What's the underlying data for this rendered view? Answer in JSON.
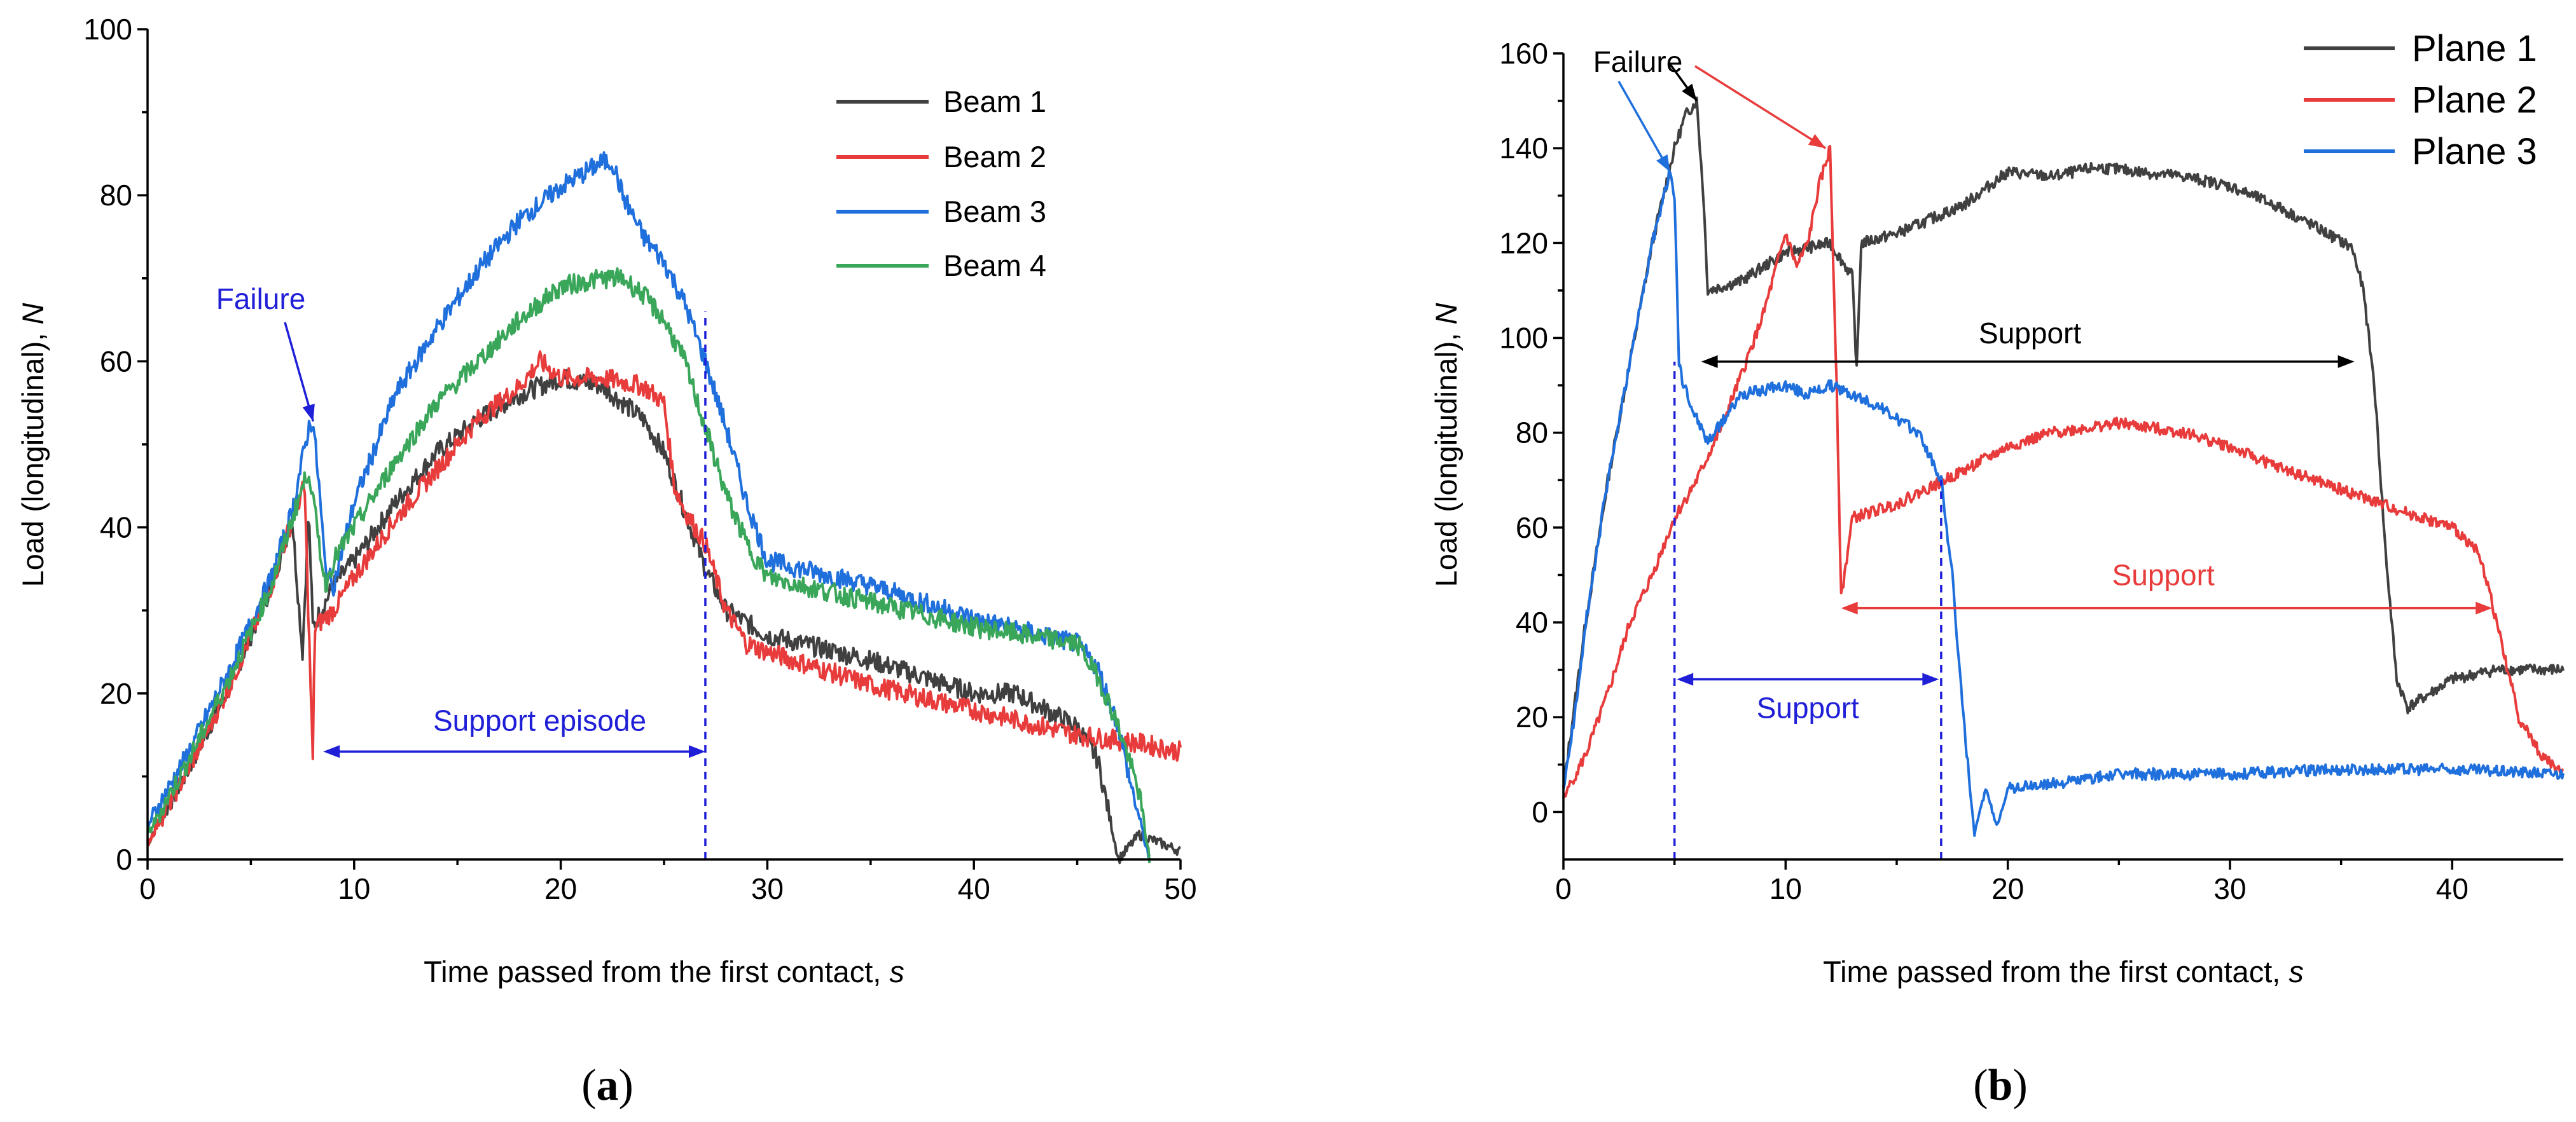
{
  "chart_data": [
    {
      "panel": "(a)",
      "panel_letter": "a",
      "type": "line",
      "xlabel": "Time passed from the first contact, ",
      "xlabel_italic": "s",
      "ylabel": "Load (longitudinal), ",
      "ylabel_italic": "N",
      "xlim": [
        0,
        50
      ],
      "ylim": [
        0,
        100
      ],
      "xticks": [
        "0",
        "10",
        "20",
        "30",
        "40",
        "50"
      ],
      "yticks": [
        "0",
        "20",
        "40",
        "60",
        "80",
        "100"
      ],
      "legend_position": "top-right",
      "series": [
        {
          "name": "Beam 1",
          "color": "#404040",
          "x": [
            0,
            2,
            4,
            6,
            7,
            7.5,
            7.8,
            8,
            9,
            10,
            12,
            14,
            15.5,
            16,
            18,
            20,
            22,
            24,
            25,
            26,
            27,
            28,
            30,
            35,
            40,
            42,
            45,
            46,
            46.5,
            47,
            48,
            49,
            50
          ],
          "y": [
            2,
            11,
            21,
            33,
            41,
            25,
            42,
            28,
            33,
            36,
            43,
            49,
            52,
            53,
            56,
            58,
            57,
            53,
            49,
            42,
            35,
            30,
            27,
            24,
            20,
            20,
            16,
            12,
            6,
            0,
            3,
            2,
            1
          ]
        },
        {
          "name": "Beam 2",
          "color": "#e83b3b",
          "x": [
            0,
            2,
            4,
            6,
            7,
            7.6,
            8,
            8.1,
            9,
            10,
            12,
            14,
            16,
            18,
            19,
            20,
            22,
            24,
            25,
            25.5,
            26,
            27,
            28,
            29,
            30,
            35,
            40,
            45,
            48,
            50
          ],
          "y": [
            2,
            11,
            21,
            33,
            41,
            45,
            12,
            28,
            30,
            34,
            41,
            47,
            53,
            57,
            60,
            58,
            58,
            57,
            55,
            45,
            42,
            38,
            30,
            26,
            25,
            21,
            18,
            15,
            14,
            13
          ]
        },
        {
          "name": "Beam 3",
          "color": "#1f6fdc",
          "x": [
            0,
            2,
            4,
            6,
            7,
            7.8,
            8,
            8.3,
            8.6,
            9,
            10,
            12,
            14,
            16,
            18,
            20,
            22,
            22.5,
            23,
            24,
            25,
            26,
            27,
            28,
            29,
            30,
            35,
            40,
            45,
            46,
            47,
            47.5,
            48,
            48.5
          ],
          "y": [
            4,
            13,
            23,
            34,
            42,
            52,
            53,
            45,
            35,
            33,
            43,
            56,
            64,
            71,
            77,
            81,
            84,
            84,
            80,
            75,
            72,
            67,
            60,
            52,
            43,
            36,
            33,
            29,
            26,
            23,
            16,
            10,
            5,
            0
          ]
        },
        {
          "name": "Beam 4",
          "color": "#3aa65a",
          "x": [
            0,
            2,
            4,
            6,
            7,
            7.8,
            8.2,
            8.6,
            9,
            10,
            12,
            14,
            16,
            18,
            20,
            22,
            23,
            24,
            25,
            26,
            27,
            28,
            29,
            30,
            35,
            40,
            45,
            46,
            47,
            48,
            48.5
          ],
          "y": [
            3,
            12,
            22,
            33,
            41,
            47,
            40,
            33,
            36,
            40,
            48,
            55,
            60,
            65,
            69,
            70,
            70,
            68,
            65,
            60,
            52,
            44,
            38,
            34,
            31,
            28,
            26,
            22,
            16,
            8,
            0
          ]
        }
      ],
      "annotations": {
        "failure_text": "Failure",
        "failure_point": [
          8.2,
          52
        ],
        "support_text": "Support episode",
        "support_range": [
          8.5,
          27
        ],
        "support_y": 13,
        "support_line_x": 27
      }
    },
    {
      "panel": "(b)",
      "panel_letter": "b",
      "type": "line",
      "xlabel": "Time passed from the first contact, ",
      "xlabel_italic": "s",
      "ylabel": "Load (longitudinal), ",
      "ylabel_italic": "N",
      "xlim": [
        0,
        45
      ],
      "ylim": [
        -10,
        160
      ],
      "xticks": [
        "0",
        "10",
        "20",
        "30",
        "40"
      ],
      "yticks": [
        "0",
        "20",
        "40",
        "60",
        "80",
        "100",
        "120",
        "140",
        "160"
      ],
      "legend_position": "top-right",
      "series": [
        {
          "name": "Plane 1",
          "color": "#404040",
          "x": [
            0,
            1,
            2,
            3,
            4,
            5,
            5.5,
            6,
            6.3,
            6.5,
            8,
            10,
            12,
            13,
            13.2,
            13.4,
            15,
            18,
            20,
            22,
            24,
            26,
            28,
            30,
            32,
            34,
            35.5,
            36,
            36.5,
            37,
            37.5,
            38,
            40,
            42,
            45
          ],
          "y": [
            5,
            40,
            70,
            95,
            120,
            140,
            147,
            150,
            130,
            110,
            112,
            118,
            120,
            113,
            93,
            120,
            122,
            128,
            135,
            134,
            136,
            135,
            134,
            132,
            128,
            123,
            119,
            110,
            90,
            55,
            28,
            22,
            28,
            30,
            30
          ]
        },
        {
          "name": "Plane 2",
          "color": "#e83b3b",
          "x": [
            0,
            1,
            2,
            3,
            4,
            5,
            6,
            7,
            8,
            9,
            10,
            10.5,
            11,
            11.5,
            12,
            12.3,
            12.5,
            13,
            15,
            18,
            20,
            22,
            25,
            28,
            30,
            32,
            35,
            38,
            40,
            41,
            41.5,
            42,
            43,
            44,
            45
          ],
          "y": [
            3,
            12,
            25,
            40,
            50,
            62,
            70,
            80,
            92,
            105,
            122,
            115,
            120,
            132,
            140,
            90,
            45,
            62,
            65,
            72,
            77,
            80,
            82,
            80,
            77,
            73,
            68,
            63,
            60,
            56,
            50,
            40,
            20,
            12,
            8
          ]
        },
        {
          "name": "Plane 3",
          "color": "#1f6fdc",
          "x": [
            0,
            0.5,
            1,
            2,
            3,
            4,
            4.8,
            5,
            5.2,
            5.4,
            5.8,
            6.5,
            8,
            10,
            11,
            12,
            14,
            16,
            17,
            17.5,
            18,
            18.5,
            19,
            19.5,
            20,
            22,
            25,
            30,
            35,
            40,
            45
          ],
          "y": [
            5,
            20,
            40,
            70,
            95,
            120,
            135,
            130,
            95,
            90,
            85,
            78,
            88,
            90,
            88,
            90,
            86,
            80,
            70,
            50,
            20,
            -5,
            5,
            -3,
            5,
            6,
            8,
            8,
            9,
            9,
            8
          ]
        }
      ],
      "annotations": {
        "failure_text": "Failure",
        "failure_targets": [
          [
            4.8,
            135
          ],
          [
            6.0,
            150
          ],
          [
            11.8,
            140
          ]
        ],
        "support_text": "Support",
        "supports": [
          {
            "color": "#000000",
            "range": [
              6.2,
              35.6
            ],
            "y": 95,
            "label_x": 21,
            "label_y": 101
          },
          {
            "color": "#e83b3b",
            "range": [
              12.5,
              41.8
            ],
            "y": 43,
            "label_x": 27,
            "label_y": 50
          },
          {
            "color": "#1f1fd8",
            "range": [
              5.1,
              16.9
            ],
            "y": 28,
            "label_x": 11,
            "label_y": 22
          }
        ],
        "dashed_lines_x": [
          5,
          17
        ]
      }
    }
  ]
}
